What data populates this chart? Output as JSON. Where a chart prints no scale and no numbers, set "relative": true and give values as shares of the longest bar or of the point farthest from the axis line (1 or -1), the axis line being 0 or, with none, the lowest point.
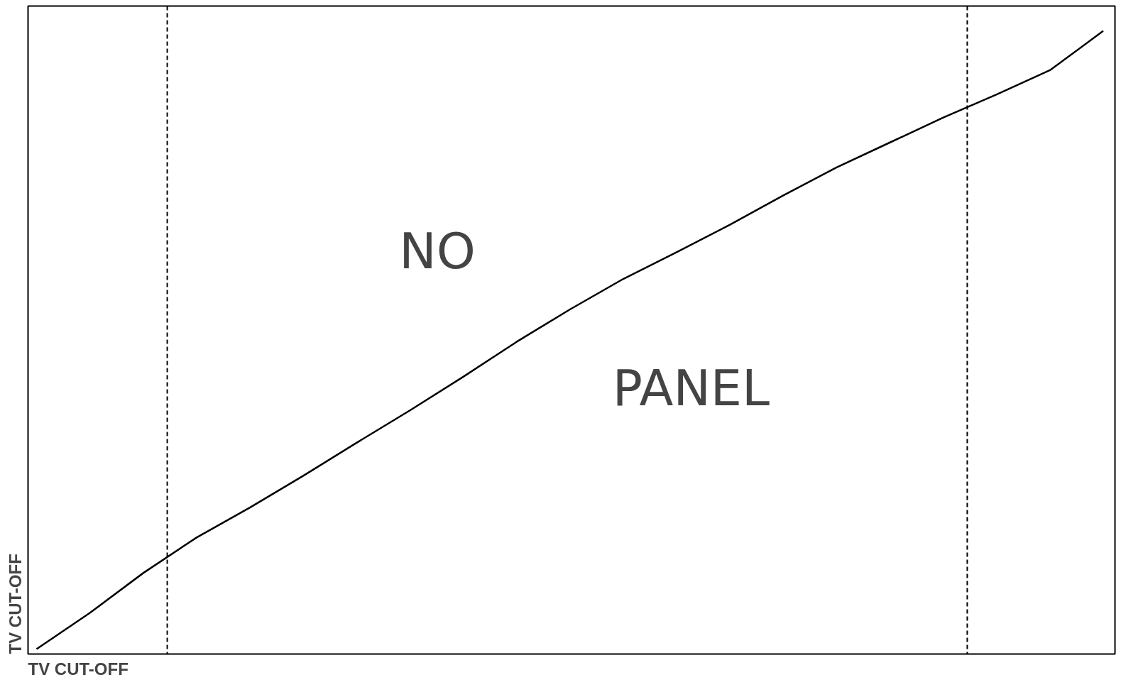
{
  "chart_data": {
    "type": "line",
    "relative": true,
    "xlabel": "TV CUT-OFF",
    "ylabel": "TV CUT-OFF",
    "categories": [
      null,
      null,
      null,
      null,
      null,
      null,
      null,
      null,
      null,
      null,
      null,
      null,
      null,
      null,
      null,
      null,
      null,
      null,
      null,
      null,
      null
    ],
    "series": [
      {
        "color": "#000000",
        "values": [
          0.008,
          0.066,
          0.13,
          0.187,
          0.235,
          0.286,
          0.339,
          0.391,
          0.445,
          0.501,
          0.553,
          0.602,
          0.645,
          0.689,
          0.736,
          0.781,
          0.821,
          0.861,
          0.898,
          0.937,
          1.0
        ]
      }
    ],
    "annotations": [
      "NO",
      "PANEL"
    ],
    "tick_labels": false,
    "grid": false,
    "marker": "none",
    "line_style": "solid"
  }
}
